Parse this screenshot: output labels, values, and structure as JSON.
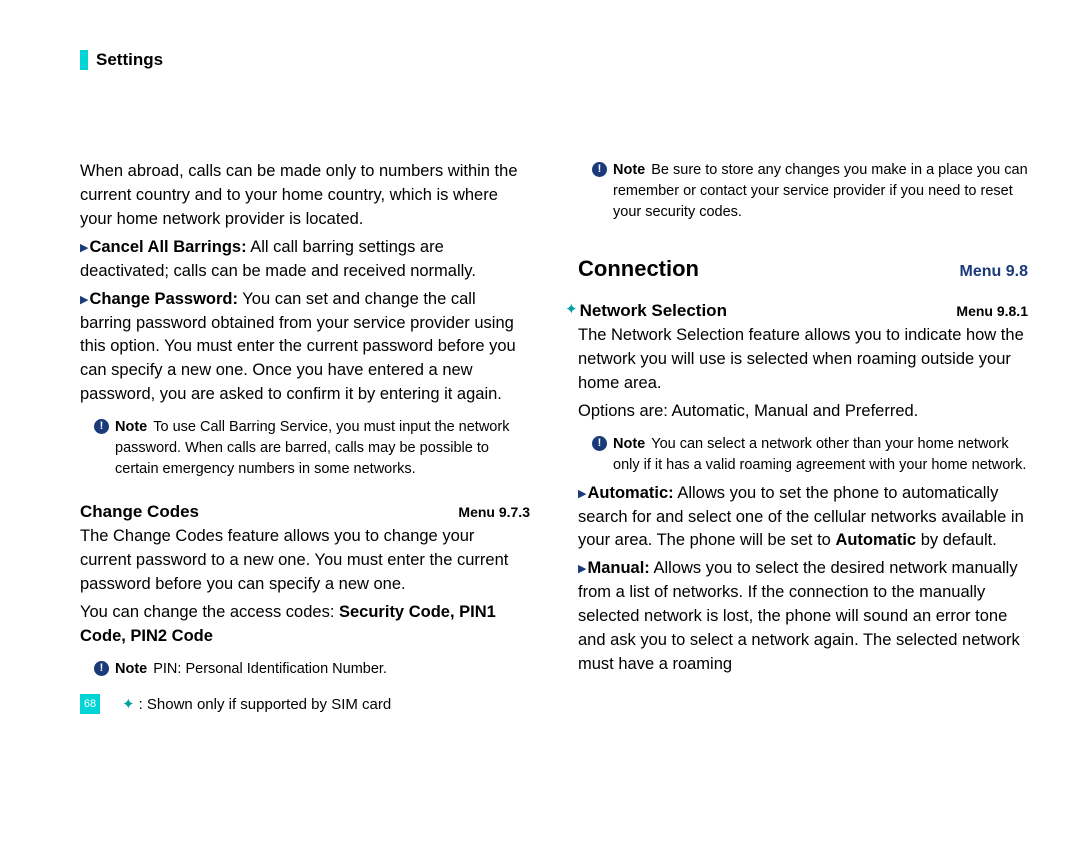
{
  "header": {
    "title": "Settings"
  },
  "left": {
    "intro": "When abroad, calls can be made only to numbers within the current country and to your home country, which is where your home network provider is located.",
    "cancel_label": "Cancel All Barrings:",
    "cancel_text": " All call barring settings are deactivated; calls can be made and received normally.",
    "change_pw_label": "Change Password:",
    "change_pw_text": " You can set and change the call barring password obtained from your service provider using this option. You must enter the current password before you can specify a new one. Once you have entered a new password, you are asked to confirm it by entering it again.",
    "note1": "To use Call Barring Service, you must input the network password. When calls are barred, calls may be possible to certain emergency numbers in some networks.",
    "change_codes_title": "Change Codes",
    "change_codes_menu": "Menu 9.7.3",
    "change_codes_body1": "The Change Codes feature allows you to change your current password to a new one. You must enter the current password before you can specify a new one.",
    "change_codes_body2_pre": "You can change the access codes: ",
    "change_codes_body2_bold": "Security Code, PIN1 Code, PIN2 Code",
    "note2": "PIN: Personal Identification Number."
  },
  "right": {
    "note1": "Be sure to store any changes you make in a place you can remember or contact your service provider if you need to reset your security codes.",
    "connection_title": "Connection",
    "connection_menu": "Menu 9.8",
    "network_sel_title": "Network Selection",
    "network_sel_menu": "Menu 9.8.1",
    "network_body1": "The Network Selection feature allows you to indicate how the network you will use is selected when roaming outside your home area.",
    "network_body2": "Options are: Automatic, Manual and Preferred.",
    "note2": "You can select a network other than your home network only if it has a valid roaming agreement with your home network.",
    "auto_label": "Automatic:",
    "auto_text_pre": " Allows you to set the phone to automatically search for and select one of the cellular networks available in your area. The phone will be set to ",
    "auto_text_bold": "Automatic",
    "auto_text_post": " by default.",
    "manual_label": "Manual:",
    "manual_text": " Allows you to select the desired network manually from a list of networks. If the connection to the manually selected network is lost, the phone will sound an error tone and ask you to select a network again. The selected network must have a roaming"
  },
  "footer": {
    "page": "68",
    "text": ": Shown only if supported by SIM card"
  },
  "labels": {
    "note": "Note"
  },
  "colors": {
    "accent_cyan": "#00d4d4",
    "accent_blue": "#1a3a7a",
    "star": "#00a0a0"
  }
}
